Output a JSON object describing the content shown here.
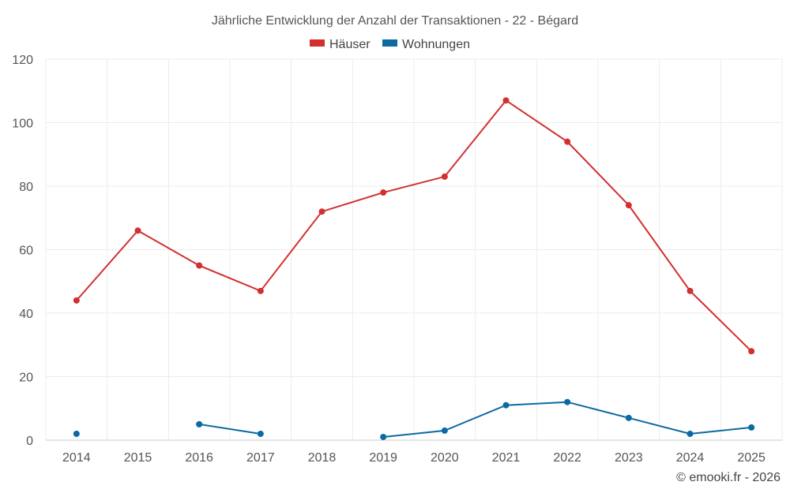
{
  "chart_data": {
    "type": "line",
    "title": "Jährliche Entwicklung der Anzahl der Transaktionen - 22 - Bégard",
    "categories": [
      "2014",
      "2015",
      "2016",
      "2017",
      "2018",
      "2019",
      "2020",
      "2021",
      "2022",
      "2023",
      "2024",
      "2025"
    ],
    "series": [
      {
        "name": "Häuser",
        "color": "#d32f2f",
        "values": [
          44,
          66,
          55,
          47,
          72,
          78,
          83,
          107,
          94,
          74,
          47,
          28
        ]
      },
      {
        "name": "Wohnungen",
        "color": "#0b6aa2",
        "values": [
          2,
          null,
          5,
          2,
          null,
          1,
          3,
          11,
          12,
          7,
          2,
          4
        ]
      }
    ],
    "ylim": [
      0,
      120
    ],
    "yticks": [
      0,
      20,
      40,
      60,
      80,
      100,
      120
    ],
    "xlabel": "",
    "ylabel": "",
    "grid": true,
    "legend": "top-center"
  },
  "credit": "© emooki.fr - 2026"
}
